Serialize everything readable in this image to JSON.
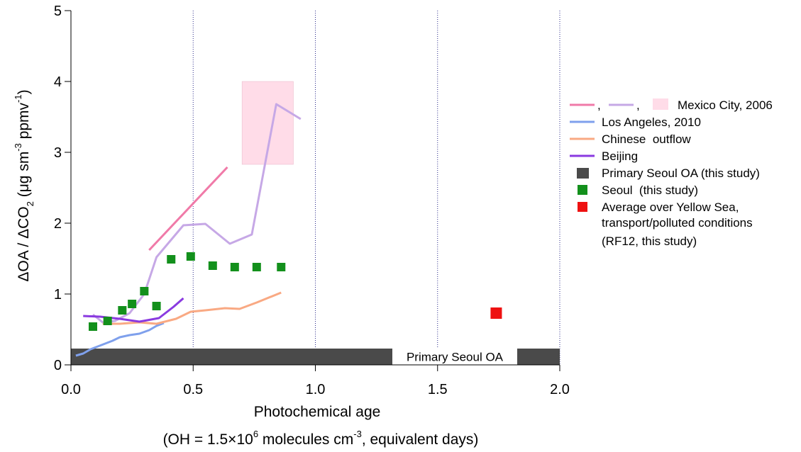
{
  "chart_data": {
    "type": "line",
    "xlabel": "Photochemical age",
    "xlabel_line2": "(OH = 1.5×10⁶ molecules cm⁻³, equivalent days)",
    "xlabel_line2_parts": {
      "a": "(OH = 1.5×10",
      "sup1": "6",
      "b": " molecules cm",
      "sup2": "-3",
      "c": ", equivalent days)"
    },
    "ylabel": "ΔOA / ΔCO₂ (μg sm⁻³ ppmv⁻¹)",
    "ylabel_parts": {
      "a": "ΔOA / ΔCO",
      "sub": "2",
      "b": " (μg sm",
      "sup1": "-3",
      "c": " ppmv",
      "sup2": "-1",
      "d": ")"
    },
    "xlim": [
      0.0,
      2.0
    ],
    "ylim": [
      0,
      5
    ],
    "x_ticks": [
      0.0,
      0.5,
      1.0,
      1.5,
      2.0
    ],
    "x_tick_labels": [
      "0.0",
      "0.5",
      "1.0",
      "1.5",
      "2.0"
    ],
    "y_ticks": [
      0,
      1,
      2,
      3,
      4,
      5
    ],
    "y_tick_labels": [
      "0",
      "1",
      "2",
      "3",
      "4",
      "5"
    ],
    "grid": "vertical dotted at x ticks",
    "primary_band": {
      "y": [
        0,
        0.23
      ],
      "label": "Primary Seoul OA",
      "color": "#4a4a4a"
    },
    "mexico_box": {
      "x": [
        0.7,
        0.91
      ],
      "y": [
        2.83,
        4.0
      ],
      "color": "#ffdce8"
    },
    "series": [
      {
        "key": "mexico_pink",
        "color": "#f07aa8",
        "width": 3,
        "points": [
          [
            0.32,
            1.62
          ],
          [
            0.64,
            2.79
          ]
        ]
      },
      {
        "key": "mexico_lavender",
        "color": "#c6a8e6",
        "width": 3,
        "points": [
          [
            0.09,
            0.71
          ],
          [
            0.13,
            0.6
          ],
          [
            0.18,
            0.62
          ],
          [
            0.24,
            0.73
          ],
          [
            0.3,
            1.0
          ],
          [
            0.35,
            1.52
          ],
          [
            0.46,
            1.97
          ],
          [
            0.55,
            1.99
          ],
          [
            0.65,
            1.71
          ],
          [
            0.74,
            1.84
          ],
          [
            0.84,
            3.68
          ],
          [
            0.94,
            3.47
          ]
        ]
      },
      {
        "key": "los_angeles",
        "color": "#7fa0ec",
        "width": 3,
        "points": [
          [
            0.02,
            0.13
          ],
          [
            0.05,
            0.16
          ],
          [
            0.08,
            0.22
          ],
          [
            0.11,
            0.26
          ],
          [
            0.14,
            0.3
          ],
          [
            0.17,
            0.34
          ],
          [
            0.2,
            0.39
          ],
          [
            0.24,
            0.42
          ],
          [
            0.28,
            0.44
          ],
          [
            0.32,
            0.49
          ],
          [
            0.35,
            0.55
          ],
          [
            0.38,
            0.59
          ]
        ]
      },
      {
        "key": "chinese_outflow",
        "color": "#f9a983",
        "width": 3,
        "points": [
          [
            0.13,
            0.58
          ],
          [
            0.2,
            0.58
          ],
          [
            0.28,
            0.6
          ],
          [
            0.35,
            0.58
          ],
          [
            0.43,
            0.65
          ],
          [
            0.49,
            0.75
          ],
          [
            0.55,
            0.77
          ],
          [
            0.63,
            0.8
          ],
          [
            0.69,
            0.79
          ],
          [
            0.76,
            0.88
          ],
          [
            0.86,
            1.02
          ]
        ]
      },
      {
        "key": "beijing",
        "color": "#8a3ae0",
        "width": 3,
        "points": [
          [
            0.05,
            0.69
          ],
          [
            0.12,
            0.68
          ],
          [
            0.2,
            0.65
          ],
          [
            0.28,
            0.61
          ],
          [
            0.36,
            0.66
          ],
          [
            0.42,
            0.82
          ],
          [
            0.46,
            0.94
          ]
        ]
      }
    ],
    "seoul_points": {
      "color": "#13901c",
      "points": [
        [
          0.09,
          0.54
        ],
        [
          0.15,
          0.62
        ],
        [
          0.21,
          0.77
        ],
        [
          0.25,
          0.86
        ],
        [
          0.3,
          1.04
        ],
        [
          0.35,
          0.83
        ],
        [
          0.41,
          1.49
        ],
        [
          0.49,
          1.53
        ],
        [
          0.58,
          1.4
        ],
        [
          0.67,
          1.38
        ],
        [
          0.76,
          1.38
        ],
        [
          0.86,
          1.38
        ]
      ]
    },
    "yellow_sea_point": {
      "color": "#ee1111",
      "point": [
        1.74,
        0.73
      ]
    },
    "legend": [
      {
        "label": "Mexico City, 2006",
        "glyphs": "mexico"
      },
      {
        "label": "Los Angeles, 2010",
        "color": "#7fa0ec",
        "glyph": "line"
      },
      {
        "label": "Chinese  outflow",
        "color": "#f9a983",
        "glyph": "line"
      },
      {
        "label": "Beijing",
        "color": "#8a3ae0",
        "glyph": "line"
      },
      {
        "label": "Primary Seoul OA (this study)",
        "color": "#4a4a4a",
        "glyph": "bar"
      },
      {
        "label": "Seoul  (this study)",
        "color": "#13901c",
        "glyph": "square"
      },
      {
        "label": "Average over Yellow Sea,",
        "color": "#ee1111",
        "glyph": "square"
      },
      {
        "label": "transport/polluted conditions",
        "glyph": "none"
      },
      {
        "label": "(RF12, this study)",
        "glyph": "none"
      }
    ],
    "legend_comma": ","
  }
}
